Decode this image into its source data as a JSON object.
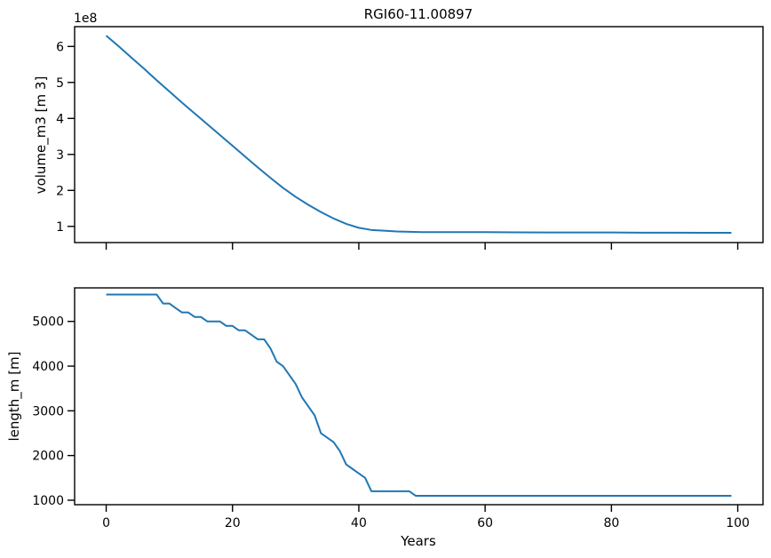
{
  "chart_data": [
    {
      "type": "line",
      "title": "RGI60-11.00897",
      "xlabel": "",
      "ylabel": "volume_m3 [m 3]",
      "offset_text": "1e8",
      "xlim": [
        -5,
        104
      ],
      "ylim": [
        0.55,
        6.55
      ],
      "xticks": [
        0,
        20,
        40,
        60,
        80,
        100
      ],
      "xtick_labels_visible": false,
      "yticks": [
        1,
        2,
        3,
        4,
        5,
        6
      ],
      "ytick_labels": [
        "1",
        "2",
        "3",
        "4",
        "5",
        "6"
      ],
      "grid": false,
      "color": "#1f77b4",
      "series": [
        {
          "x": [
            0,
            2,
            4,
            6,
            8,
            10,
            12,
            14,
            16,
            18,
            20,
            22,
            24,
            26,
            28,
            30,
            32,
            34,
            36,
            38,
            40,
            42,
            44,
            46,
            48,
            50,
            55,
            60,
            65,
            70,
            75,
            80,
            85,
            90,
            95,
            99
          ],
          "values": [
            6.3,
            6.0,
            5.69,
            5.38,
            5.06,
            4.75,
            4.44,
            4.14,
            3.84,
            3.54,
            3.24,
            2.94,
            2.64,
            2.35,
            2.07,
            1.82,
            1.6,
            1.4,
            1.22,
            1.07,
            0.96,
            0.9,
            0.88,
            0.86,
            0.85,
            0.84,
            0.84,
            0.84,
            0.835,
            0.83,
            0.83,
            0.83,
            0.825,
            0.825,
            0.82,
            0.82
          ]
        }
      ]
    },
    {
      "type": "line",
      "title": "",
      "xlabel": "Years",
      "ylabel": "length_m [m]",
      "xlim": [
        -5,
        104
      ],
      "ylim": [
        900,
        5750
      ],
      "xticks": [
        0,
        20,
        40,
        60,
        80,
        100
      ],
      "xtick_labels": [
        "0",
        "20",
        "40",
        "60",
        "80",
        "100"
      ],
      "yticks": [
        1000,
        2000,
        3000,
        4000,
        5000
      ],
      "ytick_labels": [
        "1000",
        "2000",
        "3000",
        "4000",
        "5000"
      ],
      "grid": false,
      "color": "#1f77b4",
      "series": [
        {
          "x": [
            0,
            8,
            9,
            10,
            11,
            12,
            13,
            14,
            15,
            16,
            17,
            18,
            19,
            20,
            21,
            22,
            23,
            24,
            25,
            26,
            27,
            28,
            29,
            30,
            31,
            32,
            33,
            34,
            35,
            36,
            37,
            38,
            39,
            40,
            41,
            42,
            43,
            44,
            45,
            46,
            47,
            48,
            49,
            60,
            80,
            99
          ],
          "values": [
            5600,
            5600,
            5400,
            5400,
            5300,
            5200,
            5200,
            5100,
            5100,
            5000,
            5000,
            5000,
            4900,
            4900,
            4800,
            4800,
            4700,
            4600,
            4600,
            4400,
            4100,
            4000,
            3800,
            3600,
            3300,
            3100,
            2900,
            2500,
            2400,
            2300,
            2100,
            1800,
            1700,
            1600,
            1500,
            1200,
            1200,
            1200,
            1200,
            1200,
            1200,
            1200,
            1100,
            1100,
            1100,
            1100
          ]
        }
      ]
    }
  ]
}
